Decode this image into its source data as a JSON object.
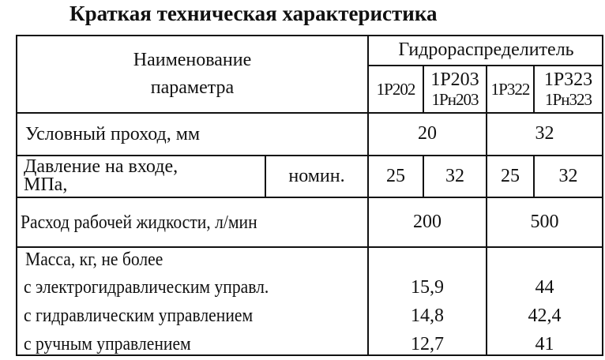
{
  "title": "Краткая техническая характеристика",
  "header": {
    "param_name": [
      "Наименование",
      "параметра"
    ],
    "group": "Гидрораспределитель",
    "models": [
      [
        "1Р202"
      ],
      [
        "1Р203",
        "1Рн203"
      ],
      [
        "1Р322"
      ],
      [
        "1Р323",
        "1Рн323"
      ]
    ]
  },
  "rows": {
    "bore": {
      "label": "Условный проход, мм",
      "values": [
        "20",
        "32"
      ]
    },
    "pressure": {
      "label": [
        "Давление на входе,",
        "МПа,"
      ],
      "sub": "номин.",
      "values": [
        "25",
        "32",
        "25",
        "32"
      ]
    },
    "flow": {
      "label": "Расход рабочей жидкости, л/мин",
      "values": [
        "200",
        "500"
      ]
    },
    "mass": {
      "label": "Масса, кг, не более",
      "items": [
        {
          "label": "с электрогидравлическим управл.",
          "values": [
            "15,9",
            "44"
          ]
        },
        {
          "label": "с гидравлическим управлением",
          "values": [
            "14,8",
            "42,4"
          ]
        },
        {
          "label": "с ручным управлением",
          "values": [
            "12,7",
            "41"
          ]
        }
      ]
    }
  }
}
